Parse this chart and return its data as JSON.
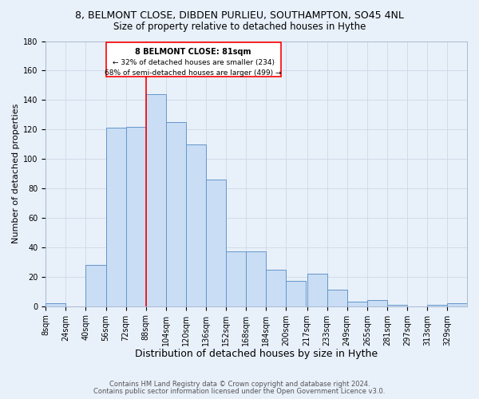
{
  "title": "8, BELMONT CLOSE, DIBDEN PURLIEU, SOUTHAMPTON, SO45 4NL",
  "subtitle": "Size of property relative to detached houses in Hythe",
  "xlabel": "Distribution of detached houses by size in Hythe",
  "ylabel": "Number of detached properties",
  "bar_labels": [
    "8sqm",
    "24sqm",
    "40sqm",
    "56sqm",
    "72sqm",
    "88sqm",
    "104sqm",
    "120sqm",
    "136sqm",
    "152sqm",
    "168sqm",
    "184sqm",
    "200sqm",
    "217sqm",
    "233sqm",
    "249sqm",
    "265sqm",
    "281sqm",
    "297sqm",
    "313sqm",
    "329sqm"
  ],
  "bar_values": [
    2,
    0,
    28,
    121,
    122,
    144,
    125,
    110,
    86,
    37,
    37,
    25,
    17,
    22,
    11,
    3,
    4,
    1,
    0,
    1,
    2
  ],
  "bar_color": "#c9ddf5",
  "bar_edge_color": "#6496c8",
  "red_line_x": 88,
  "bin_width": 16,
  "ylim": [
    0,
    180
  ],
  "yticks": [
    0,
    20,
    40,
    60,
    80,
    100,
    120,
    140,
    160,
    180
  ],
  "annotation_title": "8 BELMONT CLOSE: 81sqm",
  "annotation_line1": "← 32% of detached houses are smaller (234)",
  "annotation_line2": "68% of semi-detached houses are larger (499) →",
  "footnote1": "Contains HM Land Registry data © Crown copyright and database right 2024.",
  "footnote2": "Contains public sector information licensed under the Open Government Licence v3.0.",
  "background_color": "#e8f0fa",
  "plot_bg_color": "#e8f0fa",
  "grid_color": "#d0d8e8",
  "title_fontsize": 9,
  "subtitle_fontsize": 8.5,
  "xlabel_fontsize": 9,
  "ylabel_fontsize": 8,
  "tick_fontsize": 7
}
